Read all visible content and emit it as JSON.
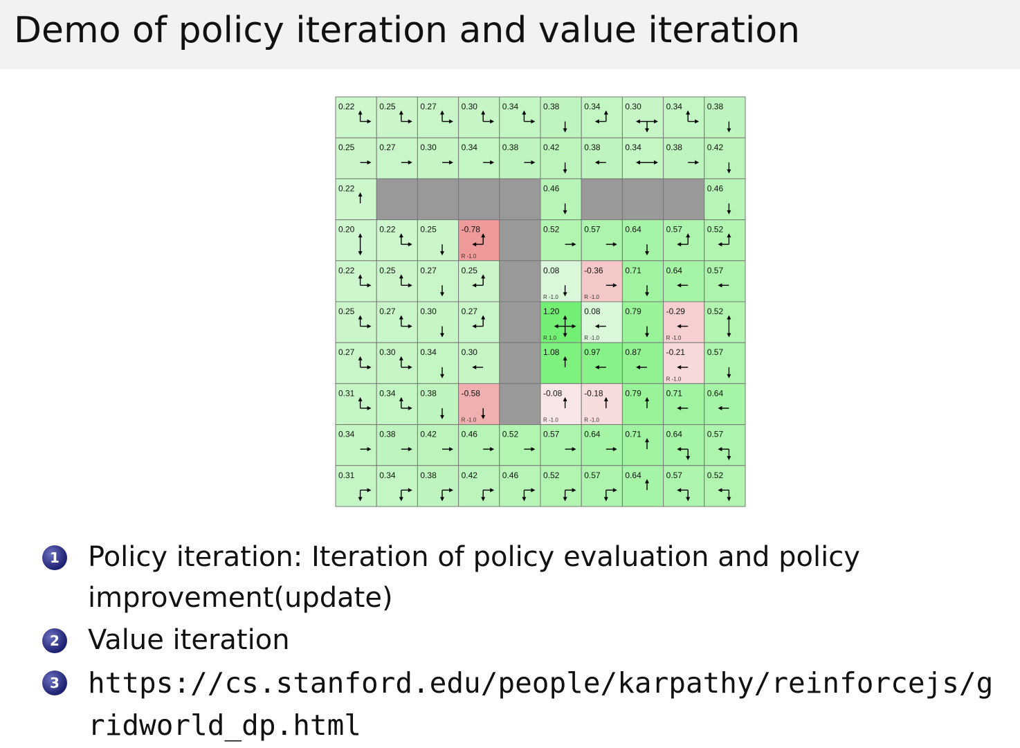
{
  "header": {
    "title": "Demo of policy iteration and value iteration"
  },
  "grid": {
    "rows": [
      [
        {
          "value": "0.22"
        },
        {
          "value": "0.25"
        },
        {
          "value": "0.27"
        },
        {
          "value": "0.30"
        },
        {
          "value": "0.34"
        },
        {
          "value": "0.38"
        },
        {
          "value": "0.34"
        },
        {
          "value": "0.30"
        },
        {
          "value": "0.34"
        },
        {
          "value": "0.38"
        }
      ],
      [
        {
          "value": "0.25"
        },
        {
          "value": "0.27"
        },
        {
          "value": "0.30"
        },
        {
          "value": "0.34"
        },
        {
          "value": "0.38"
        },
        {
          "value": "0.42"
        },
        {
          "value": "0.38"
        },
        {
          "value": "0.34"
        },
        {
          "value": "0.38"
        },
        {
          "value": "0.42"
        }
      ],
      [
        {
          "value": "0.22"
        },
        null,
        null,
        null,
        null,
        {
          "value": "0.46"
        },
        null,
        null,
        null,
        {
          "value": "0.46"
        }
      ],
      [
        {
          "value": "0.20"
        },
        {
          "value": "0.22"
        },
        {
          "value": "0.25"
        },
        {
          "value": "-0.78",
          "reward": "R -1.0"
        },
        null,
        {
          "value": "0.52"
        },
        {
          "value": "0.57"
        },
        {
          "value": "0.64"
        },
        {
          "value": "0.57"
        },
        {
          "value": "0.52"
        }
      ],
      [
        {
          "value": "0.22"
        },
        {
          "value": "0.25"
        },
        {
          "value": "0.27"
        },
        {
          "value": "0.25"
        },
        null,
        {
          "value": "0.08",
          "reward": "R -1.0"
        },
        {
          "value": "-0.36",
          "reward": "R -1.0"
        },
        {
          "value": "0.71"
        },
        {
          "value": "0.64"
        },
        {
          "value": "0.57"
        }
      ],
      [
        {
          "value": "0.25"
        },
        {
          "value": "0.27"
        },
        {
          "value": "0.30"
        },
        {
          "value": "0.27"
        },
        null,
        {
          "value": "1.20",
          "reward": "R 1.0"
        },
        {
          "value": "0.08",
          "reward": "R -1.0"
        },
        {
          "value": "0.79"
        },
        {
          "value": "-0.29",
          "reward": "R -1.0"
        },
        {
          "value": "0.52"
        }
      ],
      [
        {
          "value": "0.27"
        },
        {
          "value": "0.30"
        },
        {
          "value": "0.34"
        },
        {
          "value": "0.30"
        },
        null,
        {
          "value": "1.08"
        },
        {
          "value": "0.97"
        },
        {
          "value": "0.87"
        },
        {
          "value": "-0.21",
          "reward": "R -1.0"
        },
        {
          "value": "0.57"
        }
      ],
      [
        {
          "value": "0.31"
        },
        {
          "value": "0.34"
        },
        {
          "value": "0.38"
        },
        {
          "value": "-0.58",
          "reward": "R -1.0"
        },
        null,
        {
          "value": "-0.08",
          "reward": "R -1.0"
        },
        {
          "value": "-0.18",
          "reward": "R -1.0"
        },
        {
          "value": "0.79"
        },
        {
          "value": "0.71"
        },
        {
          "value": "0.64"
        }
      ],
      [
        {
          "value": "0.34"
        },
        {
          "value": "0.38"
        },
        {
          "value": "0.42"
        },
        {
          "value": "0.46"
        },
        {
          "value": "0.52"
        },
        {
          "value": "0.57"
        },
        {
          "value": "0.64"
        },
        {
          "value": "0.71"
        },
        {
          "value": "0.64"
        },
        {
          "value": "0.57"
        }
      ],
      [
        {
          "value": "0.31"
        },
        {
          "value": "0.34"
        },
        {
          "value": "0.38"
        },
        {
          "value": "0.42"
        },
        {
          "value": "0.46"
        },
        {
          "value": "0.52"
        },
        {
          "value": "0.57"
        },
        {
          "value": "0.64"
        },
        {
          "value": "0.57"
        },
        {
          "value": "0.52"
        }
      ]
    ]
  },
  "list": {
    "items": [
      {
        "marker": "1",
        "text": "Policy iteration: Iteration of policy evaluation and policy improvement(update)"
      },
      {
        "marker": "2",
        "text": "Value iteration"
      },
      {
        "marker": "3",
        "text": "https://cs.stanford.edu/people/karpathy/reinforcejs/gridworld_dp.html"
      }
    ]
  }
}
